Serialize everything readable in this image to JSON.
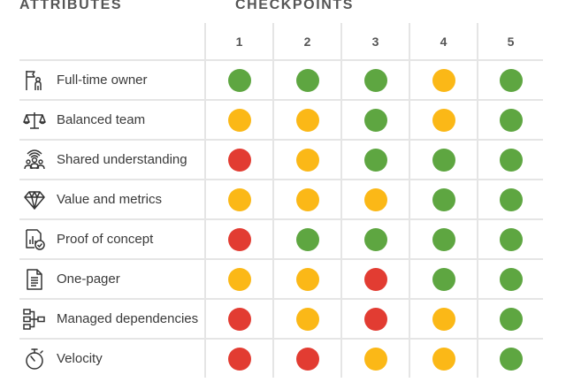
{
  "headers": {
    "attributes": "ATTRIBUTES",
    "checkpoints": "CHECKPOINTS"
  },
  "columns": [
    "1",
    "2",
    "3",
    "4",
    "5"
  ],
  "status_colors": {
    "green": "#5ea641",
    "yellow": "#fbb817",
    "red": "#e23c32"
  },
  "rows": [
    {
      "icon": "flag-person-icon",
      "label": "Full-time owner",
      "status": [
        "green",
        "green",
        "green",
        "yellow",
        "green"
      ]
    },
    {
      "icon": "scale-icon",
      "label": "Balanced team",
      "status": [
        "yellow",
        "yellow",
        "green",
        "yellow",
        "green"
      ]
    },
    {
      "icon": "group-icon",
      "label": "Shared understanding",
      "status": [
        "red",
        "yellow",
        "green",
        "green",
        "green"
      ]
    },
    {
      "icon": "diamond-icon",
      "label": "Value and metrics",
      "status": [
        "yellow",
        "yellow",
        "yellow",
        "green",
        "green"
      ]
    },
    {
      "icon": "chart-check-icon",
      "label": "Proof of concept",
      "status": [
        "red",
        "green",
        "green",
        "green",
        "green"
      ]
    },
    {
      "icon": "document-icon",
      "label": "One-pager",
      "status": [
        "yellow",
        "yellow",
        "red",
        "green",
        "green"
      ]
    },
    {
      "icon": "dependencies-icon",
      "label": "Managed dependencies",
      "status": [
        "red",
        "yellow",
        "red",
        "yellow",
        "green"
      ]
    },
    {
      "icon": "stopwatch-icon",
      "label": "Velocity",
      "status": [
        "red",
        "red",
        "yellow",
        "yellow",
        "green"
      ]
    }
  ]
}
